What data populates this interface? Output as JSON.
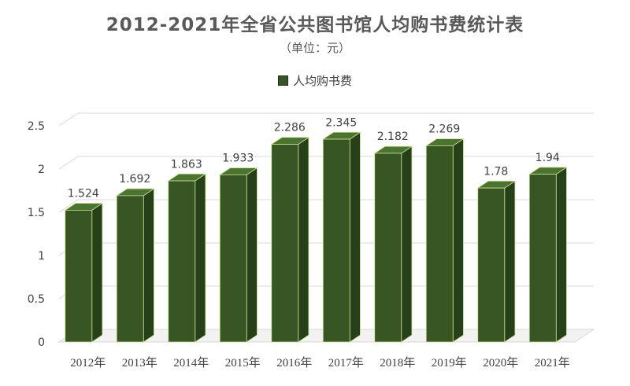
{
  "chart_data": {
    "type": "bar",
    "title": "2012-2021年全省公共图书馆人均购书费统计表",
    "subtitle": "（单位：元）",
    "categories": [
      "2012年",
      "2013年",
      "2014年",
      "2015年",
      "2016年",
      "2017年",
      "2018年",
      "2019年",
      "2020年",
      "2021年"
    ],
    "series": [
      {
        "name": "人均购书费",
        "values": [
          1.524,
          1.692,
          1.863,
          1.933,
          2.286,
          2.345,
          2.182,
          2.269,
          1.78,
          1.94
        ]
      }
    ],
    "data_labels": [
      "1.524",
      "1.692",
      "1.863",
      "1.933",
      "2.286",
      "2.345",
      "2.182",
      "2.269",
      "1.78",
      "1.94"
    ],
    "y_ticks": [
      "0",
      "0.5",
      "1",
      "1.5",
      "2",
      "2.5"
    ],
    "ylim": [
      0,
      2.5
    ],
    "legend_position": "top",
    "grid": true,
    "style": "3d-column",
    "colors": {
      "bar_front": "#375623",
      "bar_side": "#26401a",
      "bar_top": "#4b7430",
      "bar_edge": "#c9e08f"
    }
  }
}
